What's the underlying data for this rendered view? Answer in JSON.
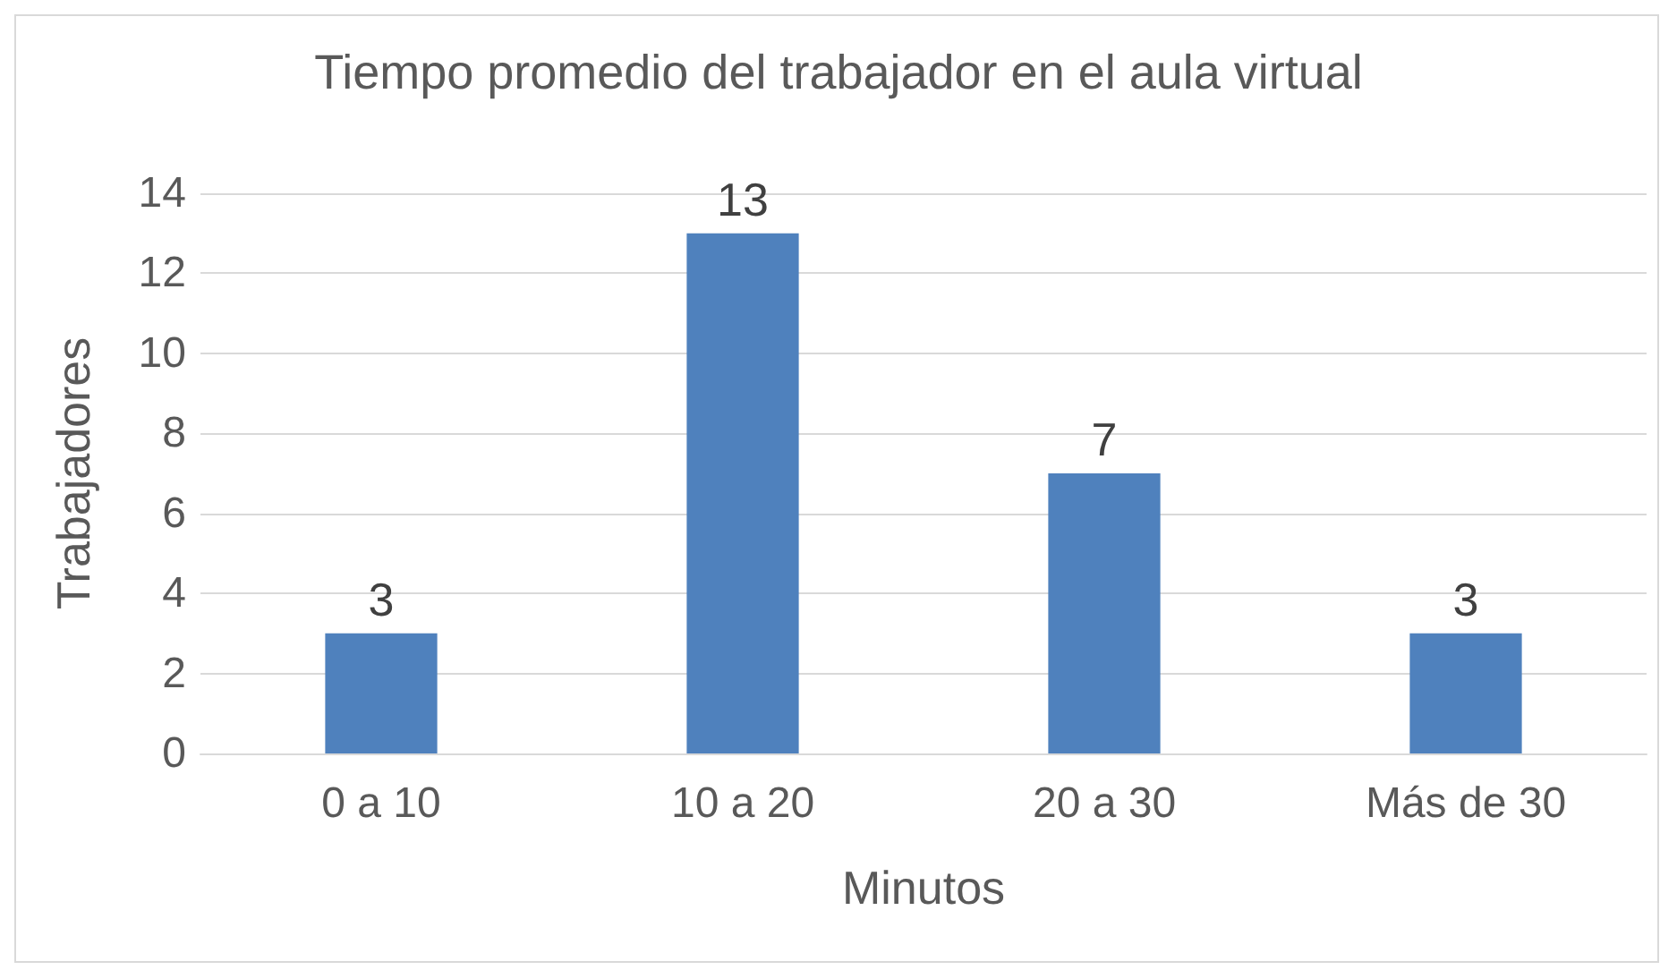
{
  "chart_data": {
    "type": "bar",
    "title": "Tiempo promedio del trabajador en el aula virtual",
    "xlabel": "Minutos",
    "ylabel": "Trabajadores",
    "categories": [
      "0 a 10",
      "10 a 20",
      "20 a 30",
      "Más de 30"
    ],
    "values": [
      3,
      13,
      7,
      3
    ],
    "color": "#4f81bd",
    "ylim": [
      0,
      14
    ],
    "yticks": [
      0,
      2,
      4,
      6,
      8,
      10,
      12,
      14
    ],
    "grid": "y",
    "data_labels": true
  }
}
